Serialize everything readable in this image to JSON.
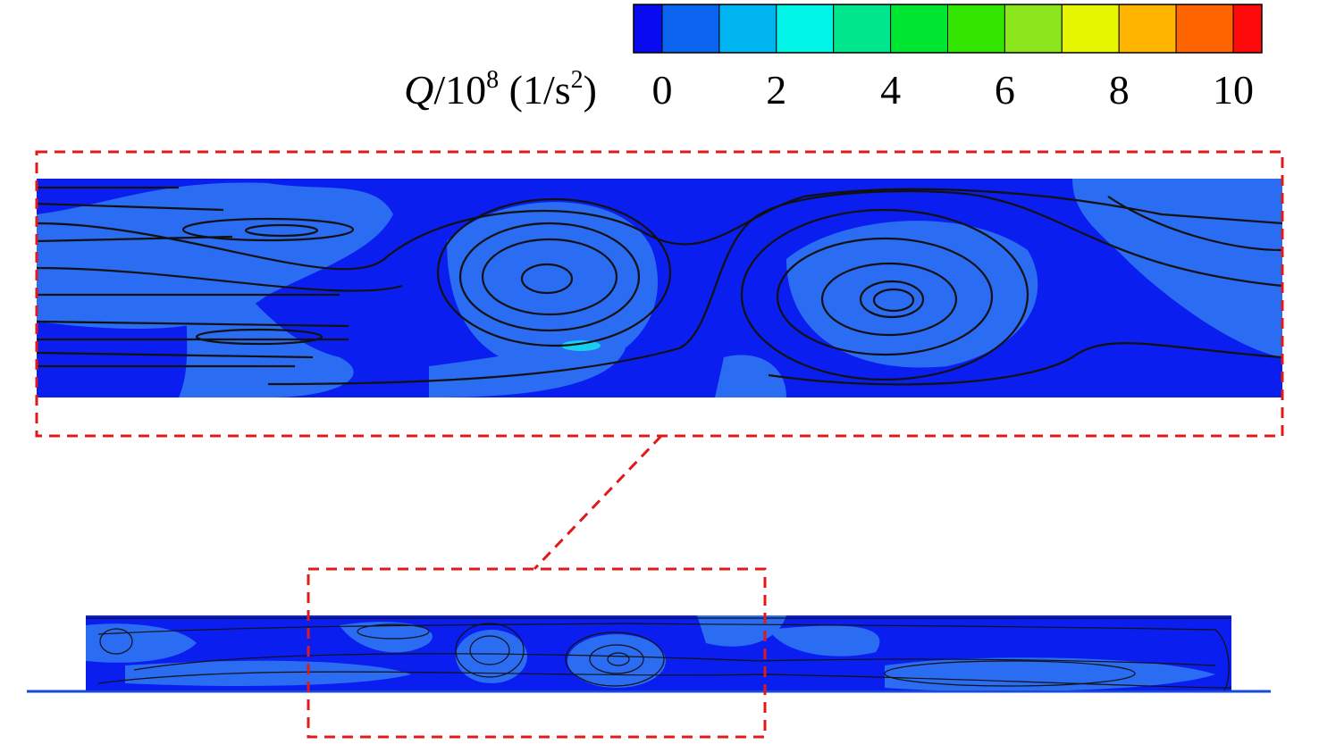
{
  "colorbar": {
    "label": {
      "symbol": "Q",
      "base": "/10",
      "exponent": "8",
      "unit_start": " (1/s",
      "unit_exponent": "2",
      "unit_end": ")"
    },
    "lim": [
      -0.5,
      10.5
    ],
    "levels": [
      0,
      1,
      2,
      3,
      4,
      5,
      6,
      7,
      8,
      9,
      10
    ],
    "colors": [
      "#0a0af0",
      "#0a64f0",
      "#00b4f0",
      "#00f5e6",
      "#00e68c",
      "#00e632",
      "#32e600",
      "#8ce61e",
      "#e6f500",
      "#ffb400",
      "#ff6400",
      "#ff0a0a"
    ],
    "ticks": [
      0,
      2,
      4,
      6,
      8,
      10
    ]
  }
}
